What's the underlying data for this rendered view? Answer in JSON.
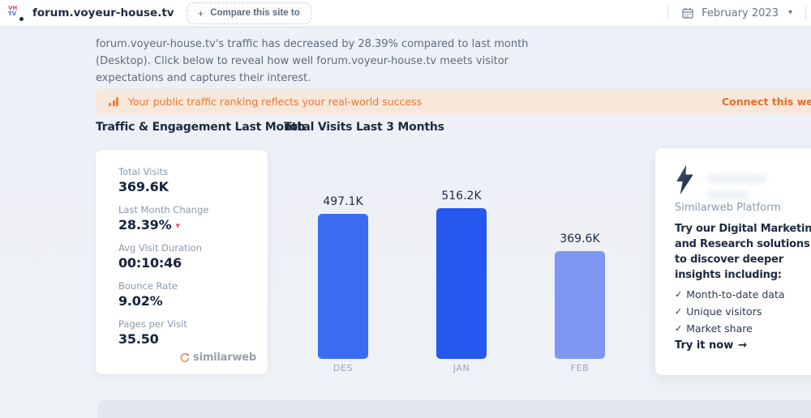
{
  "icons": {
    "plus": "+",
    "caret_down": "▾",
    "trend_down": "▾",
    "check": "✓",
    "arrow_right": "→"
  },
  "topbar": {
    "favicon_top": "VH",
    "favicon_bottom": "TV",
    "domain": "forum.voyeur-house.tv",
    "compare_button_label": "Compare this site to",
    "date_label": "February 2023"
  },
  "intro": {
    "text": "forum.voyeur-house.tv's traffic has decreased by 28.39% compared to last month\n(Desktop). Click below to reveal how well forum.voyeur-house.tv meets visitor\nexpectations and captures their interest."
  },
  "banner": {
    "message": "Your public traffic ranking reflects your real-world success",
    "link_label": "Connect this website"
  },
  "sections": {
    "engagement_title": "Traffic & Engagement Last Month",
    "chart_title": "Total Visits Last 3 Months"
  },
  "stats": [
    {
      "label": "Total Visits",
      "value": "369.6K"
    },
    {
      "label": "Last Month Change",
      "value": "28.39%",
      "trend": "down"
    },
    {
      "label": "Avg Visit Duration",
      "value": "00:10:46"
    },
    {
      "label": "Bounce Rate",
      "value": "9.02%"
    },
    {
      "label": "Pages per Visit",
      "value": "35.50"
    }
  ],
  "brand": {
    "logo_text": "similarweb"
  },
  "chart_data": {
    "type": "bar",
    "title": "Total Visits Last 3 Months",
    "categories": [
      "DES",
      "JAN",
      "FEB"
    ],
    "values": [
      497100,
      516200,
      369600
    ],
    "value_labels": [
      "497.1K",
      "516.2K",
      "369.6K"
    ],
    "bar_colors": [
      "#3a6bf0",
      "#2458ef",
      "#7d97f0"
    ],
    "xlabel": "",
    "ylabel": "",
    "ylim": [
      0,
      516200
    ],
    "grid": false,
    "legend": false
  },
  "promo": {
    "platform_label": "Similarweb Platform",
    "headline": "Try our Digital Marketing\nand Research solutions\nto discover deeper\ninsights including:",
    "features": [
      "Month-to-date data",
      "Unique visitors",
      "Market share"
    ],
    "cta": "Try it now"
  },
  "colors": {
    "accent_orange": "#e47a33",
    "banner_bg": "#f8e7db",
    "page_bg": "#eef1f6",
    "text_dark": "#1c2a40",
    "text_gray": "#8c99ab",
    "trend_red": "#e05d5d"
  }
}
